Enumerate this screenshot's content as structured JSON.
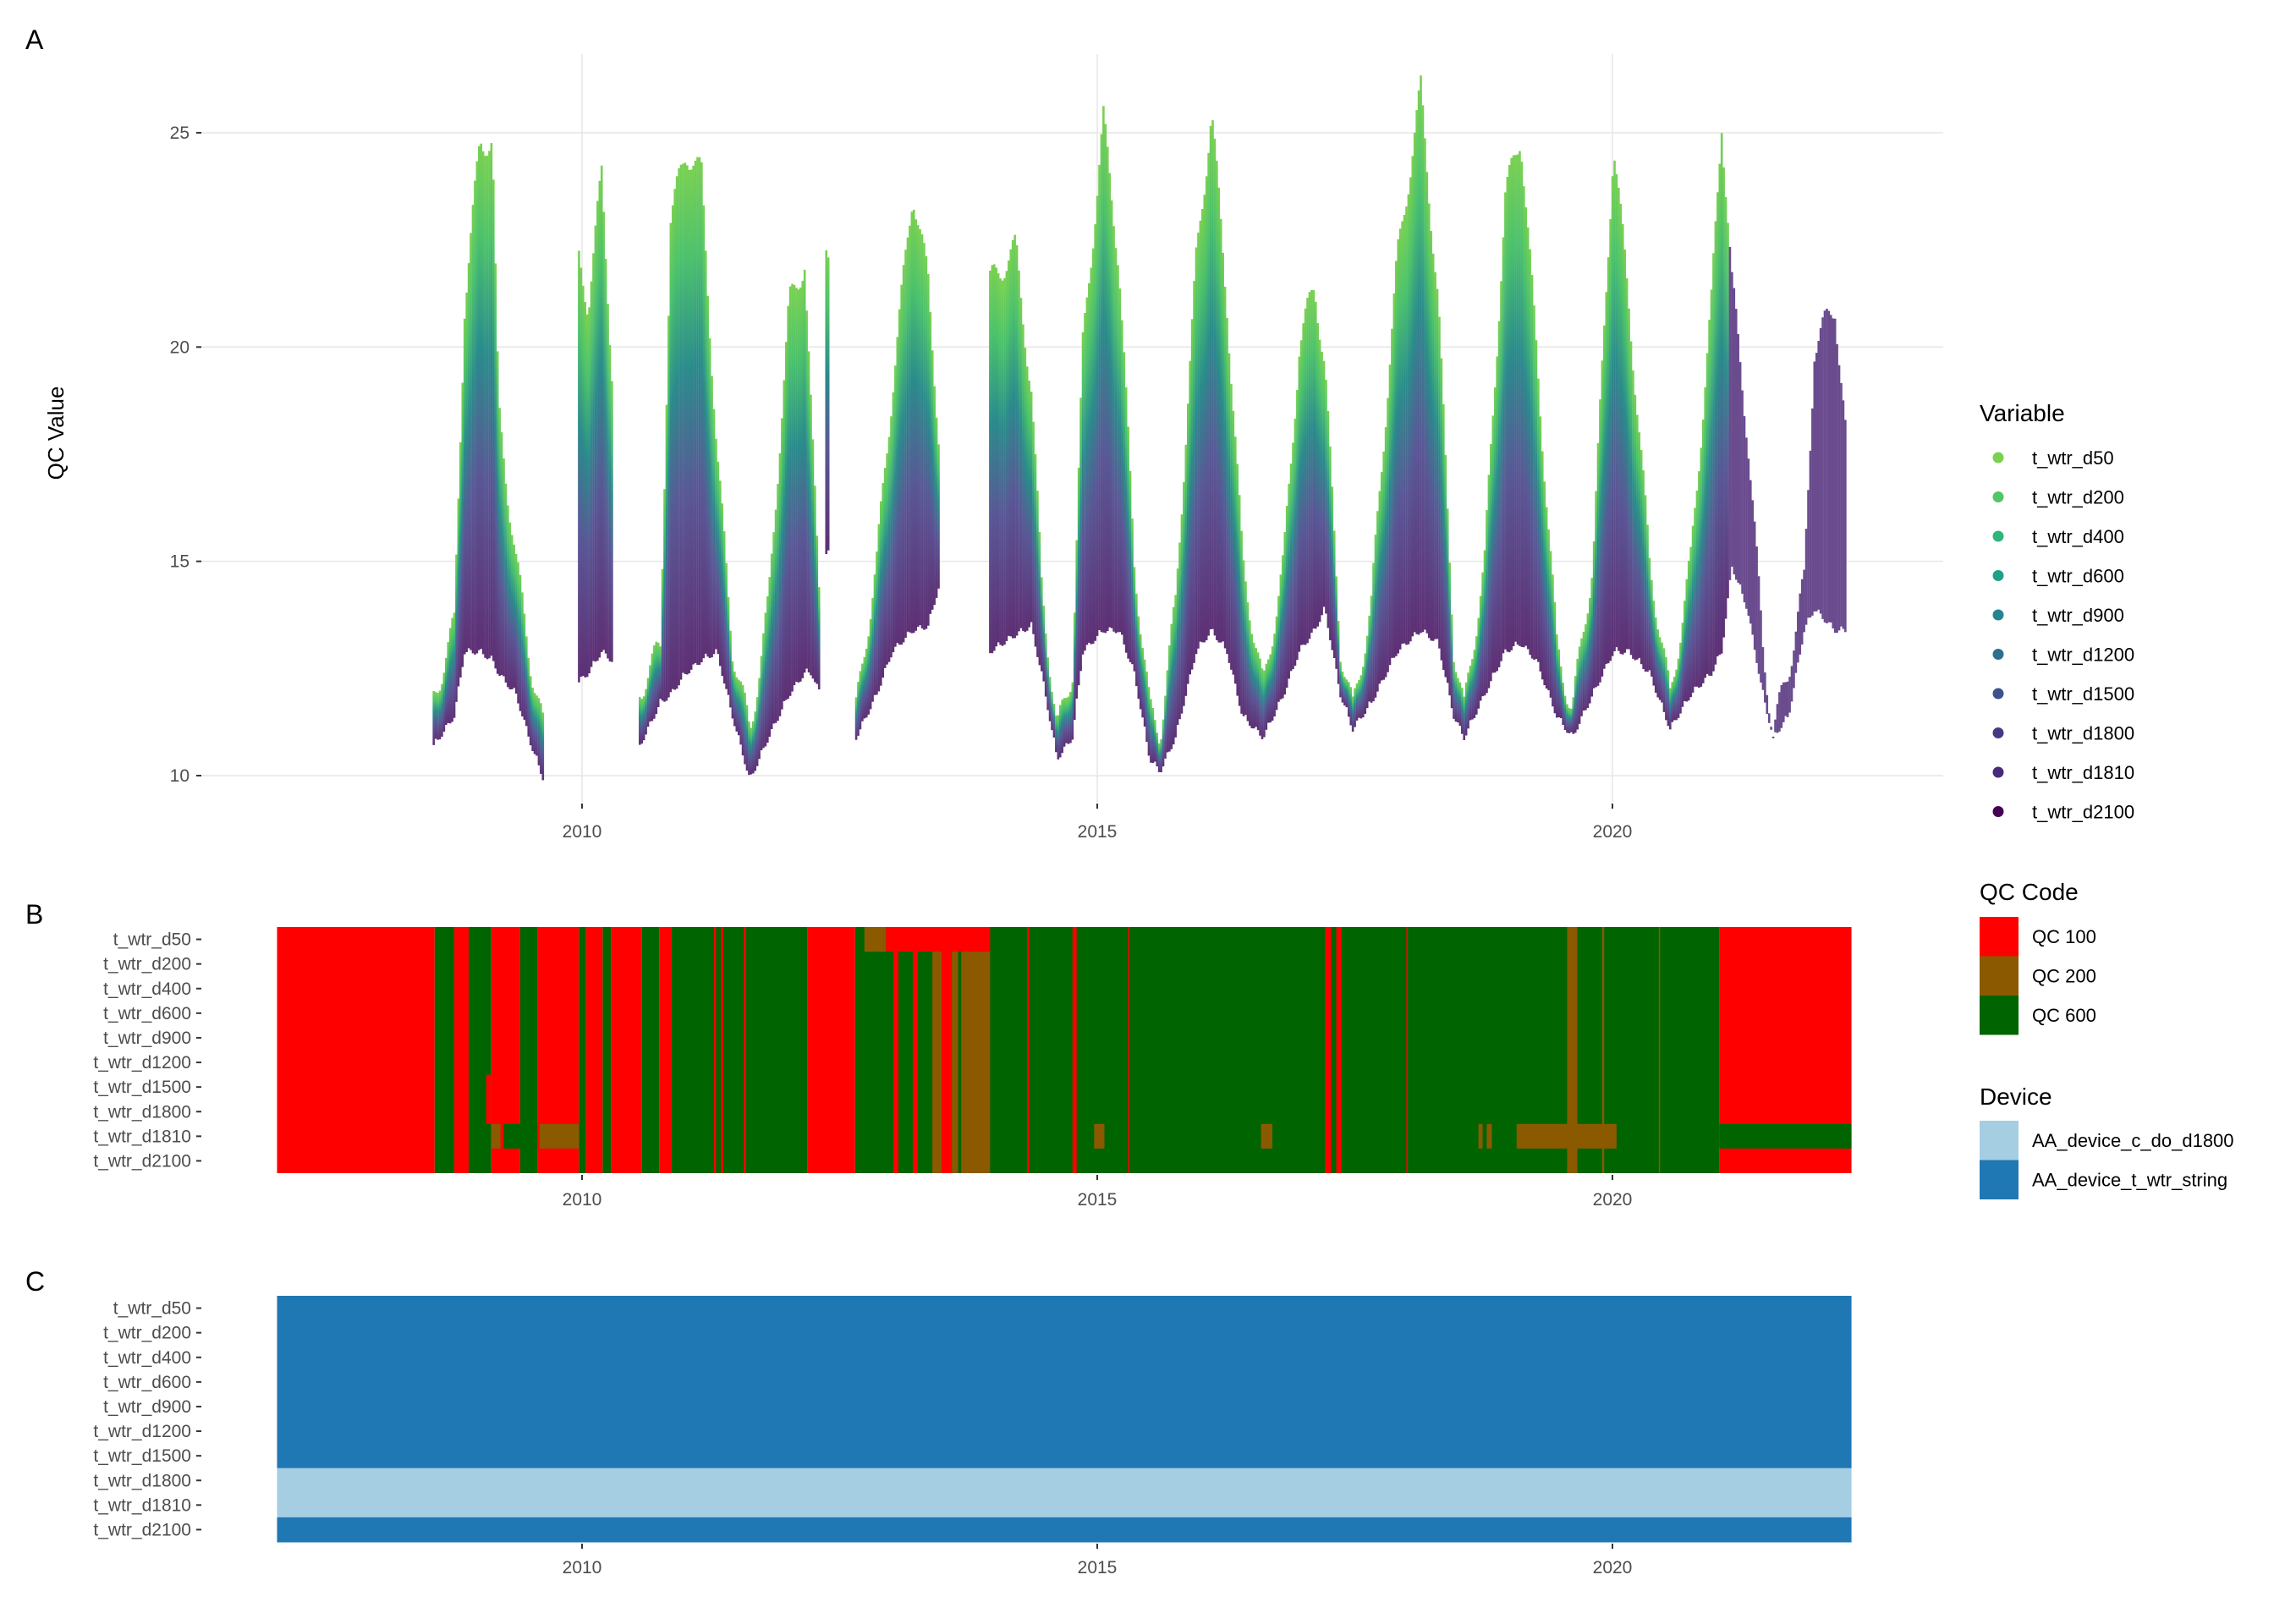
{
  "chart_data": [
    {
      "panel_label": "A",
      "type": "area",
      "title": "",
      "xlabel": "",
      "ylabel": "QC Value",
      "xlim": [
        2006.3,
        2023.2
      ],
      "ylim": [
        9.4,
        26.8
      ],
      "x_ticks": [
        "2010",
        "2015",
        "2020"
      ],
      "x_tick_values": [
        2010,
        2015,
        2020
      ],
      "y_ticks": [
        "10",
        "15",
        "20",
        "25"
      ],
      "y_tick_values": [
        10,
        15,
        20,
        25
      ],
      "grid": true,
      "legend": {
        "title": "Variable",
        "position": "right"
      },
      "series": [
        {
          "name": "t_wtr_d50",
          "color": "#7AD151"
        },
        {
          "name": "t_wtr_d200",
          "color": "#52C569"
        },
        {
          "name": "t_wtr_d400",
          "color": "#2FB47C"
        },
        {
          "name": "t_wtr_d600",
          "color": "#1FA088"
        },
        {
          "name": "t_wtr_d900",
          "color": "#25858E"
        },
        {
          "name": "t_wtr_d1200",
          "color": "#2E6F8E"
        },
        {
          "name": "t_wtr_d1500",
          "color": "#3B528B"
        },
        {
          "name": "t_wtr_d1800",
          "color": "#443A83"
        },
        {
          "name": "t_wtr_d1810",
          "color": "#472A7A"
        },
        {
          "name": "t_wtr_d2100",
          "color": "#440154"
        }
      ],
      "envelope_note_values": "segments of [year, max value (shallow), min value (deep)]",
      "deep_only_after": 2021.12,
      "segments": [
        [
          [
            2008.55,
            11.8,
            10.8
          ],
          [
            2008.75,
            13.5,
            11.5
          ],
          [
            2008.85,
            21,
            13
          ],
          [
            2009.0,
            24.8,
            13
          ],
          [
            2009.12,
            24.8,
            12.8
          ],
          [
            2009.18,
            18.5,
            12.5
          ],
          [
            2009.35,
            15,
            12
          ],
          [
            2009.5,
            12.5,
            10.8
          ],
          [
            2009.62,
            11,
            10
          ]
        ],
        [
          [
            2009.96,
            22,
            12.3
          ],
          [
            2010.05,
            21,
            12.5
          ],
          [
            2010.18,
            24,
            13
          ],
          [
            2010.28,
            19.5,
            12.8
          ]
        ],
        [
          [
            2010.55,
            12,
            10.8
          ],
          [
            2010.75,
            13,
            11.8
          ],
          [
            2010.85,
            23,
            12
          ],
          [
            2011.0,
            24.6,
            12.5
          ],
          [
            2011.15,
            24,
            12.8
          ],
          [
            2011.3,
            17.5,
            13
          ],
          [
            2011.45,
            13,
            11.5
          ],
          [
            2011.62,
            11,
            10
          ],
          [
            2011.8,
            14,
            11
          ],
          [
            2012.0,
            21,
            12
          ],
          [
            2012.15,
            22,
            12.5
          ],
          [
            2012.22,
            18,
            12.5
          ],
          [
            2012.3,
            14,
            12
          ]
        ],
        [
          [
            2012.36,
            22,
            15.3
          ],
          [
            2012.39,
            22,
            15.3
          ]
        ],
        [
          [
            2012.65,
            11.5,
            11
          ],
          [
            2012.85,
            15,
            12
          ],
          [
            2013.0,
            19,
            13
          ],
          [
            2013.2,
            23.7,
            13.5
          ],
          [
            2013.35,
            21.5,
            13.6
          ],
          [
            2013.45,
            18,
            14.5
          ]
        ],
        [
          [
            2013.95,
            21.5,
            13
          ],
          [
            2014.2,
            22.3,
            13.4
          ],
          [
            2014.35,
            19,
            13.6
          ],
          [
            2014.45,
            14.5,
            12.5
          ],
          [
            2014.6,
            11,
            10.5
          ],
          [
            2014.75,
            12.5,
            11
          ],
          [
            2014.85,
            20,
            13
          ],
          [
            2015.05,
            25.3,
            13.5
          ],
          [
            2015.2,
            22,
            13.5
          ],
          [
            2015.35,
            15,
            12.5
          ],
          [
            2015.5,
            11.5,
            10.5
          ],
          [
            2015.6,
            11,
            10.2
          ],
          [
            2015.75,
            14,
            11
          ],
          [
            2015.95,
            22,
            13
          ],
          [
            2016.1,
            25.5,
            13.5
          ],
          [
            2016.25,
            21,
            13
          ],
          [
            2016.4,
            15,
            11.5
          ],
          [
            2016.6,
            12,
            11
          ],
          [
            2016.8,
            15,
            12
          ],
          [
            2016.95,
            20,
            13
          ],
          [
            2017.1,
            21.5,
            13.5
          ],
          [
            2017.2,
            19.5,
            14
          ],
          [
            2017.35,
            13,
            12
          ],
          [
            2017.47,
            11.5,
            11.2
          ],
          [
            2017.65,
            14,
            11.8
          ],
          [
            2017.9,
            22,
            13
          ],
          [
            2018.13,
            26,
            13.5
          ],
          [
            2018.3,
            21,
            13.2
          ],
          [
            2018.45,
            13,
            11.5
          ],
          [
            2018.55,
            11.5,
            11
          ],
          [
            2018.75,
            15,
            12
          ],
          [
            2018.95,
            23.5,
            13
          ],
          [
            2019.1,
            25,
            13.2
          ],
          [
            2019.25,
            20,
            12.8
          ],
          [
            2019.45,
            13,
            11.5
          ],
          [
            2019.6,
            11.5,
            11
          ],
          [
            2019.8,
            15,
            12
          ],
          [
            2020.0,
            24.8,
            13
          ],
          [
            2020.15,
            21,
            13
          ],
          [
            2020.35,
            15,
            12.5
          ],
          [
            2020.55,
            11.8,
            11.2
          ],
          [
            2020.75,
            15,
            12
          ],
          [
            2020.95,
            21,
            12.5
          ],
          [
            2021.05,
            25.3,
            13
          ],
          [
            2021.15,
            21.5,
            15
          ],
          [
            2021.3,
            18,
            14
          ],
          [
            2021.45,
            13,
            12
          ],
          [
            2021.55,
            11,
            11
          ],
          [
            2021.7,
            12.5,
            11.5
          ],
          [
            2021.85,
            14.5,
            13.5
          ],
          [
            2021.95,
            20,
            14
          ],
          [
            2022.15,
            21,
            13.5
          ],
          [
            2022.25,
            18,
            13.5
          ]
        ]
      ]
    },
    {
      "panel_label": "B",
      "type": "heatmap",
      "xlim": [
        2007.04,
        2022.32
      ],
      "x_ticks": [
        "2010",
        "2015",
        "2020"
      ],
      "x_tick_values": [
        2010,
        2015,
        2020
      ],
      "rows": [
        "t_wtr_d50",
        "t_wtr_d200",
        "t_wtr_d400",
        "t_wtr_d600",
        "t_wtr_d900",
        "t_wtr_d1200",
        "t_wtr_d1500",
        "t_wtr_d1800",
        "t_wtr_d1810",
        "t_wtr_d2100"
      ],
      "legend": {
        "title": "QC Code",
        "position": "right"
      },
      "categories": [
        {
          "code": 100,
          "label": "QC 100",
          "color": "#FF0000"
        },
        {
          "code": 200,
          "label": "QC 200",
          "color": "#8B5A00"
        },
        {
          "code": 600,
          "label": "QC 600",
          "color": "#006400"
        }
      ],
      "cells_note": "[from_year, to_year, qc_code, first_row, last_row], painted in order",
      "cells": [
        [
          2007.04,
          2008.57,
          100,
          0,
          9
        ],
        [
          2008.57,
          2008.76,
          600,
          0,
          9
        ],
        [
          2008.76,
          2008.9,
          100,
          0,
          9
        ],
        [
          2008.9,
          2009.12,
          600,
          0,
          9
        ],
        [
          2009.12,
          2009.4,
          100,
          0,
          9
        ],
        [
          2009.4,
          2009.57,
          600,
          0,
          9
        ],
        [
          2009.57,
          2009.97,
          100,
          0,
          9
        ],
        [
          2009.97,
          2010.04,
          600,
          0,
          9
        ],
        [
          2010.04,
          2010.2,
          100,
          0,
          9
        ],
        [
          2010.2,
          2010.28,
          600,
          0,
          9
        ],
        [
          2010.28,
          2010.58,
          100,
          0,
          9
        ],
        [
          2010.58,
          2010.75,
          600,
          0,
          9
        ],
        [
          2010.75,
          2010.87,
          100,
          0,
          9
        ],
        [
          2010.87,
          2012.19,
          600,
          0,
          9
        ],
        [
          2012.19,
          2012.65,
          100,
          0,
          9
        ],
        [
          2012.65,
          2021.04,
          600,
          0,
          9
        ],
        [
          2021.04,
          2022.32,
          100,
          0,
          9
        ],
        [
          2009.07,
          2009.12,
          100,
          6,
          7
        ],
        [
          2011.28,
          2011.3,
          100,
          0,
          9
        ],
        [
          2011.35,
          2011.37,
          100,
          0,
          9
        ],
        [
          2011.57,
          2011.59,
          100,
          0,
          9
        ],
        [
          2013.02,
          2013.07,
          100,
          1,
          9
        ],
        [
          2013.21,
          2013.26,
          100,
          1,
          9
        ],
        [
          2013.49,
          2013.59,
          100,
          1,
          9
        ],
        [
          2013.4,
          2013.49,
          200,
          1,
          9
        ],
        [
          2013.59,
          2013.65,
          200,
          1,
          9
        ],
        [
          2013.68,
          2013.96,
          200,
          1,
          9
        ],
        [
          2012.74,
          2012.95,
          200,
          0,
          0
        ],
        [
          2012.95,
          2013.96,
          100,
          0,
          0
        ],
        [
          2014.32,
          2014.34,
          100,
          0,
          9
        ],
        [
          2014.76,
          2014.8,
          100,
          0,
          9
        ],
        [
          2015.3,
          2015.31,
          100,
          0,
          9
        ],
        [
          2017.21,
          2017.27,
          100,
          0,
          9
        ],
        [
          2017.32,
          2017.37,
          100,
          0,
          9
        ],
        [
          2018.0,
          2018.01,
          100,
          0,
          9
        ],
        [
          2019.56,
          2019.66,
          200,
          0,
          9
        ],
        [
          2019.9,
          2019.92,
          200,
          0,
          9
        ],
        [
          2020.45,
          2020.46,
          200,
          0,
          9
        ],
        [
          2009.12,
          2009.21,
          200,
          8,
          8
        ],
        [
          2009.21,
          2009.24,
          100,
          8,
          8
        ],
        [
          2009.24,
          2009.57,
          600,
          8,
          8
        ],
        [
          2009.59,
          2009.97,
          200,
          8,
          8
        ],
        [
          2014.97,
          2015.07,
          200,
          8,
          8
        ],
        [
          2016.59,
          2016.7,
          200,
          8,
          8
        ],
        [
          2018.7,
          2018.74,
          200,
          8,
          8
        ],
        [
          2018.78,
          2018.83,
          200,
          8,
          8
        ],
        [
          2019.07,
          2020.04,
          200,
          8,
          8
        ],
        [
          2021.04,
          2022.32,
          600,
          8,
          8
        ]
      ]
    },
    {
      "panel_label": "C",
      "type": "heatmap",
      "xlim": [
        2007.04,
        2022.32
      ],
      "x_ticks": [
        "2010",
        "2015",
        "2020"
      ],
      "x_tick_values": [
        2010,
        2015,
        2020
      ],
      "rows": [
        "t_wtr_d50",
        "t_wtr_d200",
        "t_wtr_d400",
        "t_wtr_d600",
        "t_wtr_d900",
        "t_wtr_d1200",
        "t_wtr_d1500",
        "t_wtr_d1800",
        "t_wtr_d1810",
        "t_wtr_d2100"
      ],
      "legend": {
        "title": "Device",
        "position": "right"
      },
      "categories": [
        {
          "label": "AA_device_c_do_d1800",
          "color": "#A6CEE3"
        },
        {
          "label": "AA_device_t_wtr_string",
          "color": "#1F78B4"
        }
      ],
      "row_device": [
        1,
        1,
        1,
        1,
        1,
        1,
        1,
        0,
        0,
        1
      ]
    }
  ]
}
